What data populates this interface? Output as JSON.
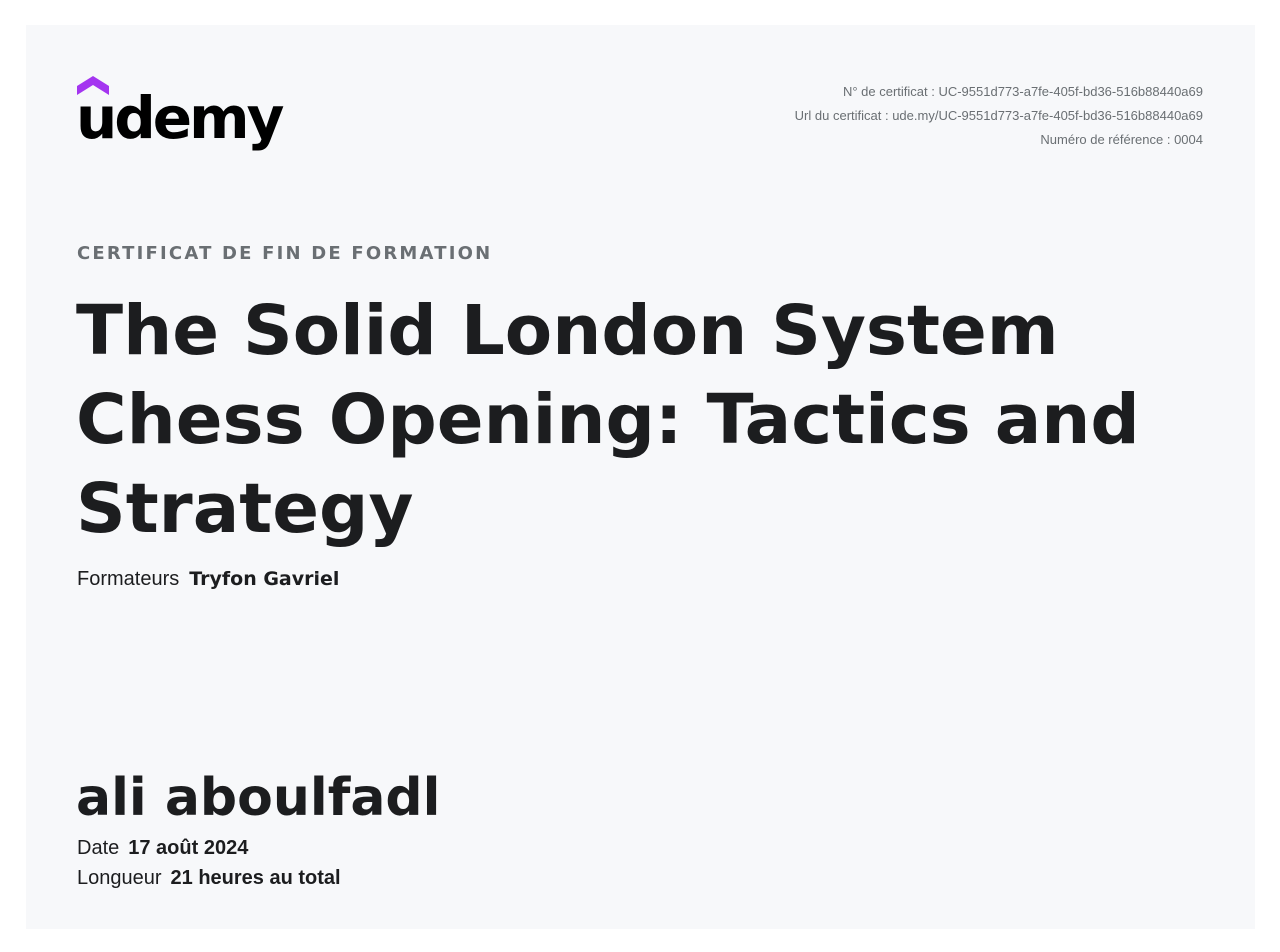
{
  "brand": {
    "name": "udemy",
    "accent_color": "#a435f0"
  },
  "certificate_meta": {
    "number": "N° de certificat : UC-9551d773-a7fe-405f-bd36-516b88440a69",
    "url": "Url du certificat : ude.my/UC-9551d773-a7fe-405f-bd36-516b88440a69",
    "reference": "Numéro de référence : 0004"
  },
  "certificate": {
    "subtitle": "CERTIFICAT DE FIN DE FORMATION",
    "course_title": "The Solid London System Chess Opening: Tactics and Strategy",
    "instructors_label": "Formateurs",
    "instructors": "Tryfon Gavriel",
    "student_name": "ali aboulfadl",
    "date_label": "Date",
    "date": "17 août 2024",
    "length_label": "Longueur",
    "length": "21 heures au total"
  }
}
